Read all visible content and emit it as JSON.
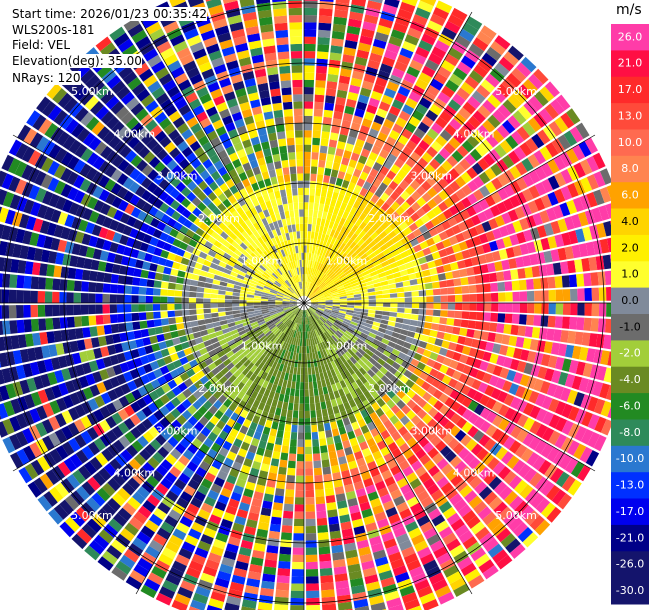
{
  "header": {
    "start_time": "Start time: 2026/01/23 00:35:42",
    "instrument": "WLS200s-181",
    "field": "Field: VEL",
    "elevation": "Elevation(deg): 35.00",
    "nrays": "NRays: 120"
  },
  "colorbar": {
    "unit": "m/s",
    "ticks": [
      "26.0",
      "21.0",
      "17.0",
      "13.0",
      "10.0",
      "8.0",
      "6.0",
      "4.0",
      "2.0",
      "1.0",
      "0.0",
      "-1.0",
      "-2.0",
      "-4.0",
      "-6.0",
      "-8.0",
      "-10.0",
      "-13.0",
      "-17.0",
      "-21.0",
      "-26.0",
      "-30.0"
    ],
    "colors": [
      "#ff3ca8",
      "#ff0f44",
      "#ff2a2a",
      "#ff4a3a",
      "#ff6a50",
      "#ff8450",
      "#ffa200",
      "#ffd400",
      "#fff000",
      "#ffff2e",
      "#808a9a",
      "#6c6c6c",
      "#a2ce3a",
      "#6a8a22",
      "#228a22",
      "#2e8a5a",
      "#2a78d0",
      "#0030ff",
      "#0000ee",
      "#000088",
      "#14146c",
      "#14146c"
    ]
  },
  "chart_data": {
    "type": "ppi",
    "field": "VEL",
    "units": "m/s",
    "n_rays": 120,
    "elevation_deg": 35.0,
    "range_rings_km": [
      1.0,
      2.0,
      3.0,
      4.0,
      5.0
    ],
    "range_labels": [
      "1.00km",
      "2.00km",
      "3.00km",
      "4.00km",
      "5.00km"
    ],
    "max_range_km": 5.6,
    "color_levels": [
      -30.0,
      -26.0,
      -21.0,
      -17.0,
      -13.0,
      -10.0,
      -8.0,
      -6.0,
      -4.0,
      -2.0,
      -1.0,
      0.0,
      1.0,
      2.0,
      4.0,
      6.0,
      8.0,
      10.0,
      13.0,
      17.0,
      21.0,
      26.0
    ],
    "mean_velocity_by_sector": [
      {
        "azimuth_deg": 0,
        "inner_ms": 1.5,
        "outer_ms": 3.0
      },
      {
        "azimuth_deg": 45,
        "inner_ms": 5.0,
        "outer_ms": 16.0
      },
      {
        "azimuth_deg": 90,
        "inner_ms": 1.0,
        "outer_ms": 24.0
      },
      {
        "azimuth_deg": 135,
        "inner_ms": -1.5,
        "outer_ms": 24.0
      },
      {
        "azimuth_deg": 180,
        "inner_ms": -4.0,
        "outer_ms": 10.0
      },
      {
        "azimuth_deg": 225,
        "inner_ms": -2.0,
        "outer_ms": -14.0
      },
      {
        "azimuth_deg": 270,
        "inner_ms": 0.5,
        "outer_ms": -26.0
      },
      {
        "azimuth_deg": 315,
        "inner_ms": 2.0,
        "outer_ms": -20.0
      }
    ]
  }
}
